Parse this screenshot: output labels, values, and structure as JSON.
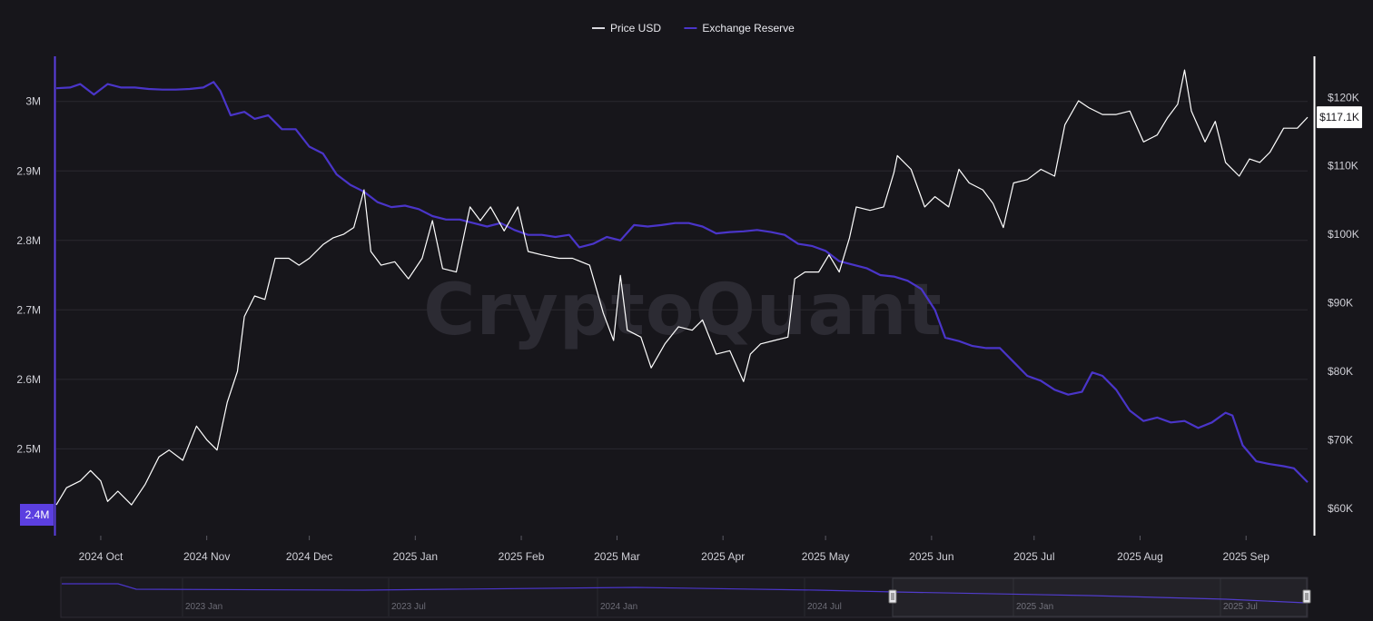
{
  "watermark": "CryptoQuant",
  "legend": [
    {
      "label": "Price USD",
      "color": "#d9d9df"
    },
    {
      "label": "Exchange Reserve",
      "color": "#4a35c9"
    }
  ],
  "colors": {
    "price": "#ffffff",
    "reserve": "#4a35c9",
    "reserve_axis": "#5b3fe0",
    "grid": "#2a2930",
    "badge_bg": "#ffffff",
    "badge_text": "#17161b"
  },
  "left_axis": {
    "ticks": [
      {
        "label": "3M",
        "value": 3000000
      },
      {
        "label": "2.9M",
        "value": 2900000
      },
      {
        "label": "2.8M",
        "value": 2800000
      },
      {
        "label": "2.7M",
        "value": 2700000
      },
      {
        "label": "2.6M",
        "value": 2600000
      },
      {
        "label": "2.5M",
        "value": 2500000
      }
    ],
    "current_label": "2.4M"
  },
  "right_axis": {
    "ticks": [
      {
        "label": "$120K",
        "value": 120000
      },
      {
        "label": "$110K",
        "value": 110000
      },
      {
        "label": "$100K",
        "value": 100000
      },
      {
        "label": "$90K",
        "value": 90000
      },
      {
        "label": "$80K",
        "value": 80000
      },
      {
        "label": "$70K",
        "value": 70000
      },
      {
        "label": "$60K",
        "value": 60000
      }
    ],
    "current_label": "$117.1K"
  },
  "navigator": {
    "labels": [
      "2023 Jan",
      "2023 Jul",
      "2024 Jan",
      "2024 Jul",
      "2025 Jan",
      "2025 Jul"
    ]
  },
  "chart_data": {
    "type": "line",
    "x_type": "date",
    "xlim": [
      "2024-09-18",
      "2025-09-19"
    ],
    "x_ticks": [
      {
        "label": "2024 Oct",
        "date": "2024-10-01"
      },
      {
        "label": "2024 Nov",
        "date": "2024-11-01"
      },
      {
        "label": "2024 Dec",
        "date": "2024-12-01"
      },
      {
        "label": "2025 Jan",
        "date": "2025-01-01"
      },
      {
        "label": "2025 Feb",
        "date": "2025-02-01"
      },
      {
        "label": "2025 Mar",
        "date": "2025-03-01"
      },
      {
        "label": "2025 Apr",
        "date": "2025-04-01"
      },
      {
        "label": "2025 May",
        "date": "2025-05-01"
      },
      {
        "label": "2025 Jun",
        "date": "2025-06-01"
      },
      {
        "label": "2025 Jul",
        "date": "2025-07-01"
      },
      {
        "label": "2025 Aug",
        "date": "2025-08-01"
      },
      {
        "label": "2025 Sep",
        "date": "2025-09-01"
      }
    ],
    "grid": true,
    "legend_position": "top-center",
    "series": [
      {
        "name": "Price USD",
        "axis": "right",
        "ylim": [
          56000,
          126000
        ],
        "points": [
          [
            "2024-09-18",
            60500
          ],
          [
            "2024-09-21",
            63000
          ],
          [
            "2024-09-25",
            64000
          ],
          [
            "2024-09-28",
            65500
          ],
          [
            "2024-10-01",
            64000
          ],
          [
            "2024-10-03",
            61000
          ],
          [
            "2024-10-06",
            62500
          ],
          [
            "2024-10-10",
            60500
          ],
          [
            "2024-10-14",
            63500
          ],
          [
            "2024-10-18",
            67500
          ],
          [
            "2024-10-21",
            68500
          ],
          [
            "2024-10-25",
            67000
          ],
          [
            "2024-10-29",
            72000
          ],
          [
            "2024-11-01",
            70000
          ],
          [
            "2024-11-04",
            68500
          ],
          [
            "2024-11-07",
            75500
          ],
          [
            "2024-11-10",
            80000
          ],
          [
            "2024-11-12",
            88000
          ],
          [
            "2024-11-15",
            91000
          ],
          [
            "2024-11-18",
            90500
          ],
          [
            "2024-11-21",
            96500
          ],
          [
            "2024-11-25",
            96500
          ],
          [
            "2024-11-28",
            95500
          ],
          [
            "2024-12-01",
            96500
          ],
          [
            "2024-12-05",
            98500
          ],
          [
            "2024-12-08",
            99500
          ],
          [
            "2024-12-11",
            100000
          ],
          [
            "2024-12-14",
            101000
          ],
          [
            "2024-12-17",
            106500
          ],
          [
            "2024-12-19",
            97500
          ],
          [
            "2024-12-22",
            95500
          ],
          [
            "2024-12-26",
            96000
          ],
          [
            "2024-12-30",
            93500
          ],
          [
            "2025-01-03",
            96500
          ],
          [
            "2025-01-06",
            102000
          ],
          [
            "2025-01-09",
            95000
          ],
          [
            "2025-01-13",
            94500
          ],
          [
            "2025-01-17",
            104000
          ],
          [
            "2025-01-20",
            102000
          ],
          [
            "2025-01-23",
            104000
          ],
          [
            "2025-01-27",
            100500
          ],
          [
            "2025-01-31",
            104000
          ],
          [
            "2025-02-03",
            97500
          ],
          [
            "2025-02-07",
            97000
          ],
          [
            "2025-02-12",
            96500
          ],
          [
            "2025-02-16",
            96500
          ],
          [
            "2025-02-21",
            95500
          ],
          [
            "2025-02-25",
            88500
          ],
          [
            "2025-02-28",
            84500
          ],
          [
            "2025-03-02",
            94000
          ],
          [
            "2025-03-04",
            86000
          ],
          [
            "2025-03-08",
            85000
          ],
          [
            "2025-03-11",
            80500
          ],
          [
            "2025-03-15",
            84000
          ],
          [
            "2025-03-19",
            86500
          ],
          [
            "2025-03-23",
            86000
          ],
          [
            "2025-03-26",
            87500
          ],
          [
            "2025-03-30",
            82500
          ],
          [
            "2025-04-03",
            83000
          ],
          [
            "2025-04-07",
            78500
          ],
          [
            "2025-04-09",
            82500
          ],
          [
            "2025-04-12",
            84000
          ],
          [
            "2025-04-16",
            84500
          ],
          [
            "2025-04-20",
            85000
          ],
          [
            "2025-04-22",
            93500
          ],
          [
            "2025-04-25",
            94500
          ],
          [
            "2025-04-29",
            94500
          ],
          [
            "2025-05-02",
            97000
          ],
          [
            "2025-05-05",
            94500
          ],
          [
            "2025-05-08",
            99500
          ],
          [
            "2025-05-10",
            104000
          ],
          [
            "2025-05-14",
            103500
          ],
          [
            "2025-05-18",
            104000
          ],
          [
            "2025-05-21",
            109000
          ],
          [
            "2025-05-22",
            111500
          ],
          [
            "2025-05-26",
            109500
          ],
          [
            "2025-05-30",
            104000
          ],
          [
            "2025-06-02",
            105500
          ],
          [
            "2025-06-06",
            104000
          ],
          [
            "2025-06-09",
            109500
          ],
          [
            "2025-06-12",
            107500
          ],
          [
            "2025-06-16",
            106500
          ],
          [
            "2025-06-19",
            104500
          ],
          [
            "2025-06-22",
            101000
          ],
          [
            "2025-06-25",
            107500
          ],
          [
            "2025-06-29",
            108000
          ],
          [
            "2025-07-03",
            109500
          ],
          [
            "2025-07-07",
            108500
          ],
          [
            "2025-07-10",
            116000
          ],
          [
            "2025-07-14",
            119500
          ],
          [
            "2025-07-17",
            118500
          ],
          [
            "2025-07-21",
            117500
          ],
          [
            "2025-07-25",
            117500
          ],
          [
            "2025-07-29",
            118000
          ],
          [
            "2025-08-02",
            113500
          ],
          [
            "2025-08-06",
            114500
          ],
          [
            "2025-08-09",
            117000
          ],
          [
            "2025-08-12",
            119000
          ],
          [
            "2025-08-14",
            124000
          ],
          [
            "2025-08-16",
            118000
          ],
          [
            "2025-08-20",
            113500
          ],
          [
            "2025-08-23",
            116500
          ],
          [
            "2025-08-26",
            110500
          ],
          [
            "2025-08-30",
            108500
          ],
          [
            "2025-09-02",
            111000
          ],
          [
            "2025-09-05",
            110500
          ],
          [
            "2025-09-08",
            112000
          ],
          [
            "2025-09-12",
            115500
          ],
          [
            "2025-09-16",
            115500
          ],
          [
            "2025-09-19",
            117100
          ]
        ]
      },
      {
        "name": "Exchange Reserve",
        "axis": "left",
        "ylim": [
          2375000,
          3065000
        ],
        "points": [
          [
            "2024-09-18",
            3019000
          ],
          [
            "2024-09-22",
            3020000
          ],
          [
            "2024-09-25",
            3025000
          ],
          [
            "2024-09-29",
            3010000
          ],
          [
            "2024-10-03",
            3025000
          ],
          [
            "2024-10-07",
            3020000
          ],
          [
            "2024-10-11",
            3020000
          ],
          [
            "2024-10-15",
            3018000
          ],
          [
            "2024-10-19",
            3017000
          ],
          [
            "2024-10-23",
            3017000
          ],
          [
            "2024-10-27",
            3018000
          ],
          [
            "2024-10-31",
            3020000
          ],
          [
            "2024-11-03",
            3028000
          ],
          [
            "2024-11-05",
            3015000
          ],
          [
            "2024-11-08",
            2980000
          ],
          [
            "2024-11-12",
            2985000
          ],
          [
            "2024-11-15",
            2975000
          ],
          [
            "2024-11-19",
            2980000
          ],
          [
            "2024-11-23",
            2960000
          ],
          [
            "2024-11-27",
            2960000
          ],
          [
            "2024-12-01",
            2935000
          ],
          [
            "2024-12-05",
            2925000
          ],
          [
            "2024-12-09",
            2895000
          ],
          [
            "2024-12-13",
            2880000
          ],
          [
            "2024-12-17",
            2870000
          ],
          [
            "2024-12-21",
            2855000
          ],
          [
            "2024-12-25",
            2848000
          ],
          [
            "2024-12-29",
            2850000
          ],
          [
            "2025-01-02",
            2845000
          ],
          [
            "2025-01-06",
            2835000
          ],
          [
            "2025-01-10",
            2830000
          ],
          [
            "2025-01-14",
            2830000
          ],
          [
            "2025-01-18",
            2825000
          ],
          [
            "2025-01-22",
            2820000
          ],
          [
            "2025-01-26",
            2825000
          ],
          [
            "2025-01-30",
            2815000
          ],
          [
            "2025-02-03",
            2808000
          ],
          [
            "2025-02-07",
            2808000
          ],
          [
            "2025-02-11",
            2805000
          ],
          [
            "2025-02-15",
            2808000
          ],
          [
            "2025-02-18",
            2790000
          ],
          [
            "2025-02-22",
            2795000
          ],
          [
            "2025-02-26",
            2805000
          ],
          [
            "2025-03-02",
            2800000
          ],
          [
            "2025-03-06",
            2822000
          ],
          [
            "2025-03-10",
            2820000
          ],
          [
            "2025-03-14",
            2822000
          ],
          [
            "2025-03-18",
            2825000
          ],
          [
            "2025-03-22",
            2825000
          ],
          [
            "2025-03-26",
            2820000
          ],
          [
            "2025-03-30",
            2810000
          ],
          [
            "2025-04-03",
            2812000
          ],
          [
            "2025-04-07",
            2813000
          ],
          [
            "2025-04-11",
            2815000
          ],
          [
            "2025-04-15",
            2812000
          ],
          [
            "2025-04-19",
            2808000
          ],
          [
            "2025-04-23",
            2795000
          ],
          [
            "2025-04-27",
            2792000
          ],
          [
            "2025-05-01",
            2785000
          ],
          [
            "2025-05-05",
            2770000
          ],
          [
            "2025-05-09",
            2765000
          ],
          [
            "2025-05-13",
            2760000
          ],
          [
            "2025-05-17",
            2750000
          ],
          [
            "2025-05-21",
            2748000
          ],
          [
            "2025-05-25",
            2742000
          ],
          [
            "2025-05-29",
            2730000
          ],
          [
            "2025-06-02",
            2700000
          ],
          [
            "2025-06-05",
            2660000
          ],
          [
            "2025-06-09",
            2655000
          ],
          [
            "2025-06-13",
            2648000
          ],
          [
            "2025-06-17",
            2645000
          ],
          [
            "2025-06-21",
            2645000
          ],
          [
            "2025-06-25",
            2625000
          ],
          [
            "2025-06-29",
            2605000
          ],
          [
            "2025-07-03",
            2598000
          ],
          [
            "2025-07-07",
            2585000
          ],
          [
            "2025-07-11",
            2578000
          ],
          [
            "2025-07-15",
            2582000
          ],
          [
            "2025-07-18",
            2610000
          ],
          [
            "2025-07-21",
            2605000
          ],
          [
            "2025-07-25",
            2585000
          ],
          [
            "2025-07-29",
            2555000
          ],
          [
            "2025-08-02",
            2540000
          ],
          [
            "2025-08-06",
            2545000
          ],
          [
            "2025-08-10",
            2538000
          ],
          [
            "2025-08-14",
            2540000
          ],
          [
            "2025-08-18",
            2530000
          ],
          [
            "2025-08-22",
            2538000
          ],
          [
            "2025-08-26",
            2552000
          ],
          [
            "2025-08-28",
            2548000
          ],
          [
            "2025-08-31",
            2505000
          ],
          [
            "2025-09-04",
            2482000
          ],
          [
            "2025-09-08",
            2478000
          ],
          [
            "2025-09-12",
            2475000
          ],
          [
            "2025-09-15",
            2472000
          ],
          [
            "2025-09-19",
            2452000
          ]
        ]
      }
    ]
  }
}
